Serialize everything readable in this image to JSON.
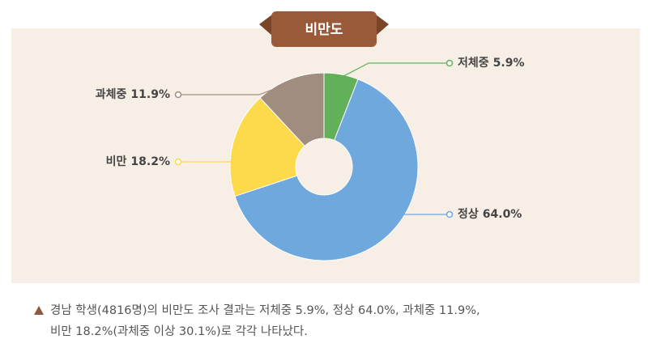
{
  "chart_data": {
    "type": "donut",
    "title": "비만도",
    "categories": [
      "저체중",
      "정상",
      "비만",
      "과체중"
    ],
    "values": [
      5.9,
      64.0,
      18.2,
      11.9
    ],
    "value_labels": [
      "5.9%",
      "64.0%",
      "18.2%",
      "11.9%"
    ],
    "colors": [
      "#62b15a",
      "#6fa8dc",
      "#fdd94c",
      "#a08d80"
    ]
  },
  "note": {
    "lines": [
      "경남 학생(4816명)의 비만도 조사 결과는 저체중 5.9%, 정상 64.0%, 과체중 11.9%,",
      "비만 18.2%(과체중 이상 30.1%)로 각각 나타났다."
    ]
  }
}
